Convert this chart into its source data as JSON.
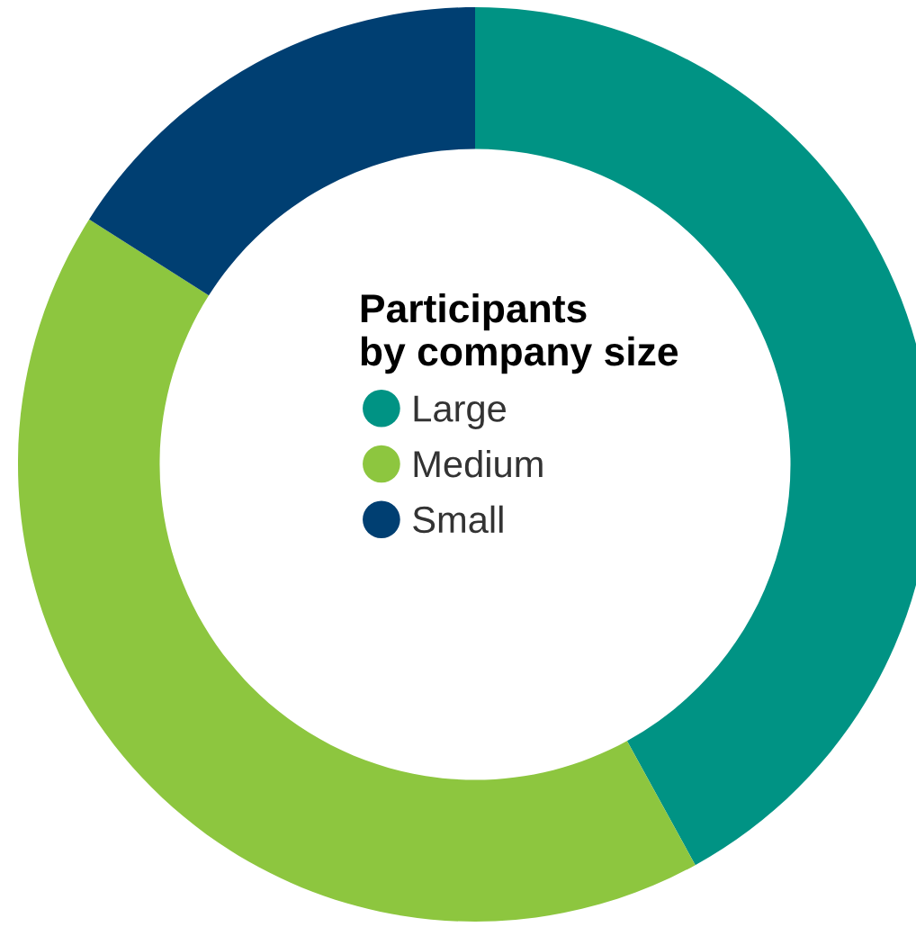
{
  "chart_data": {
    "type": "donut",
    "legend_title": "Participants\nby company size",
    "categories": [
      "Large",
      "Medium",
      "Small"
    ],
    "values": [
      42,
      42,
      16
    ],
    "colors": [
      "#009384",
      "#8dc63f",
      "#003f72"
    ],
    "legend": "center"
  }
}
